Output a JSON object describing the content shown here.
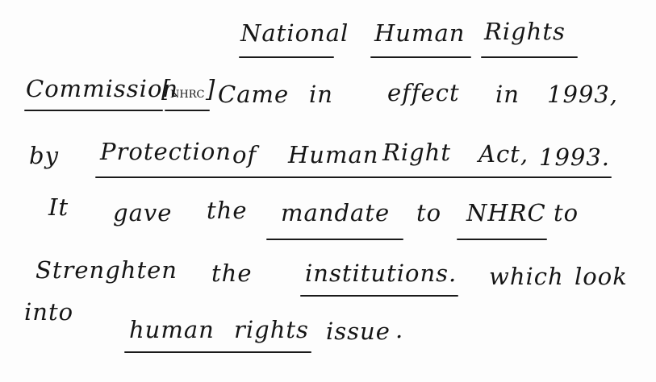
{
  "note": {
    "title_line": [
      "National",
      "Human",
      "Rights"
    ],
    "line2": {
      "w1": "Commission",
      "bracket_left": "[",
      "abbr": "NHRC",
      "bracket_right": "]",
      "w2": "Came",
      "w3": "in",
      "w4": "effect",
      "w5": "in",
      "w6": "1993,"
    },
    "line3": {
      "w1": "by",
      "w2": "Protection",
      "w3": "of",
      "w4": "Human",
      "w5": "Right",
      "w6": "Act,",
      "w7": "1993."
    },
    "line4": {
      "w1": "It",
      "w2": "gave",
      "w3": "the",
      "w4": "mandate",
      "w5": "to",
      "w6": "NHRC",
      "w7": "to"
    },
    "line5": {
      "w1": "Strenghten",
      "w2": "the",
      "w3": "institutions.",
      "w4": "which",
      "w5": "look"
    },
    "line6": {
      "w1": "into",
      "w2": "human",
      "w3": "rights",
      "w4": "issue",
      "w5": "."
    }
  }
}
